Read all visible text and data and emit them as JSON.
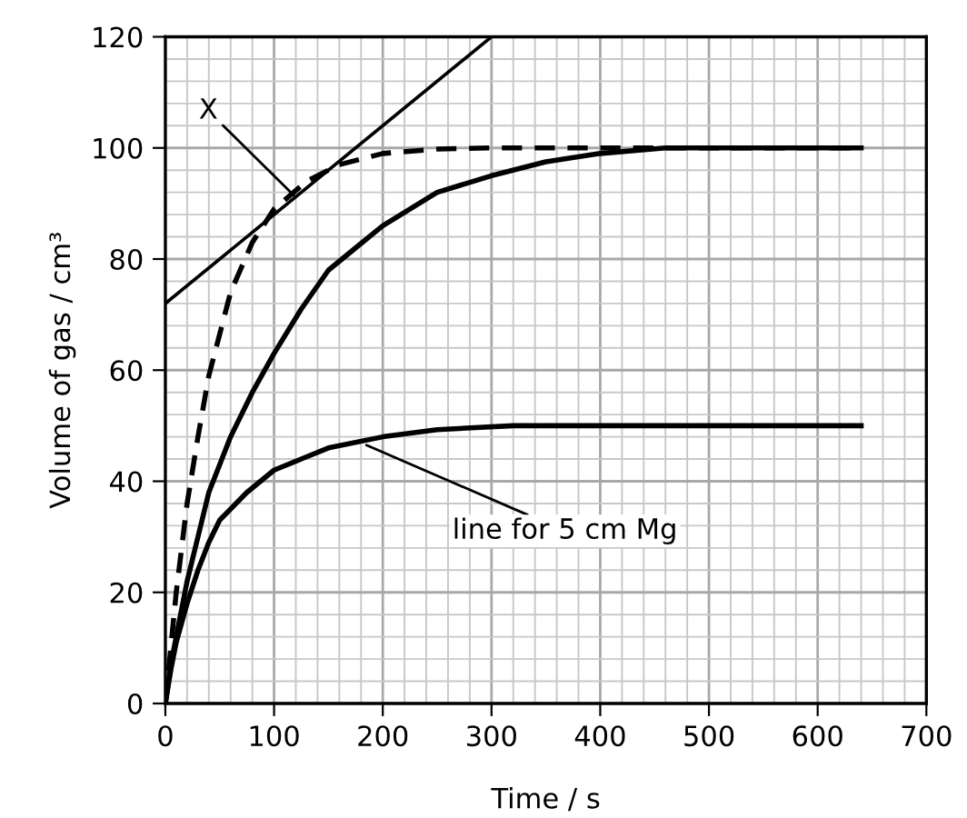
{
  "chart_data": {
    "type": "line",
    "xlabel": "Time / s",
    "ylabel": "Volume of gas / cm³",
    "xlim": [
      0,
      700
    ],
    "ylim": [
      0,
      120
    ],
    "xticks": [
      0,
      100,
      200,
      300,
      400,
      500,
      600,
      700
    ],
    "yticks": [
      0,
      20,
      40,
      60,
      80,
      100,
      120
    ],
    "grid": true,
    "marker": "none",
    "series": [
      {
        "color": "#000000",
        "line_style": "dashed",
        "x": [
          0,
          5,
          10,
          20,
          30,
          40,
          60,
          80,
          100,
          130,
          160,
          200,
          250,
          300,
          640
        ],
        "values": [
          0,
          10,
          20,
          36,
          48,
          59,
          74,
          83,
          89,
          94,
          97,
          99,
          99.8,
          100,
          100
        ]
      },
      {
        "color": "#000000",
        "line_style": "solid",
        "x": [
          0,
          5,
          10,
          20,
          30,
          40,
          60,
          80,
          100,
          125,
          150,
          175,
          200,
          250,
          300,
          350,
          400,
          460,
          640
        ],
        "values": [
          0,
          7,
          12,
          22,
          30,
          38,
          48,
          56,
          63,
          71,
          78,
          82,
          86,
          92,
          95,
          97.5,
          99,
          100,
          100
        ]
      },
      {
        "color": "#000000",
        "line_style": "solid",
        "x": [
          0,
          5,
          10,
          20,
          30,
          40,
          50,
          75,
          100,
          125,
          150,
          200,
          250,
          320,
          640
        ],
        "values": [
          0,
          6,
          11,
          18,
          24,
          29,
          33,
          38,
          42,
          44,
          46,
          48,
          49.3,
          50,
          50
        ]
      },
      {
        "color": "#000000",
        "line_style": "solid",
        "x": [
          0,
          300
        ],
        "values": [
          72,
          120
        ]
      }
    ],
    "annotations": [
      {
        "text": "X",
        "x": 118,
        "y": 91.5
      },
      {
        "text": "line for 5 cm Mg",
        "x": 185,
        "y": 46.5
      }
    ]
  }
}
